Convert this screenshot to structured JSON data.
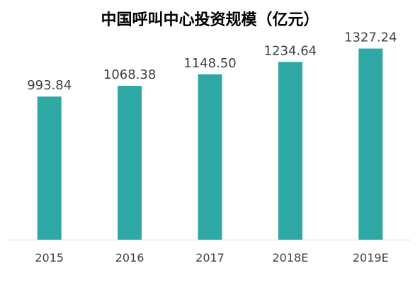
{
  "chart_data": {
    "type": "bar",
    "title": "中国呼叫中心投资规模（亿元）",
    "xlabel": "",
    "ylabel": "",
    "categories": [
      "2015",
      "2016",
      "2017",
      "2018E",
      "2019E"
    ],
    "values": [
      993.84,
      1068.38,
      1148.5,
      1234.64,
      1327.24
    ],
    "data_labels": [
      "993.84",
      "1068.38",
      "1148.50",
      "1234.64",
      "1327.24"
    ],
    "ylim": [
      0,
      1320
    ],
    "grid": false,
    "legend": "none",
    "colors": {
      "bar": "#2ea8a4",
      "axis": "#d9d9d9",
      "label": "#404040",
      "tick": "#404040"
    }
  }
}
